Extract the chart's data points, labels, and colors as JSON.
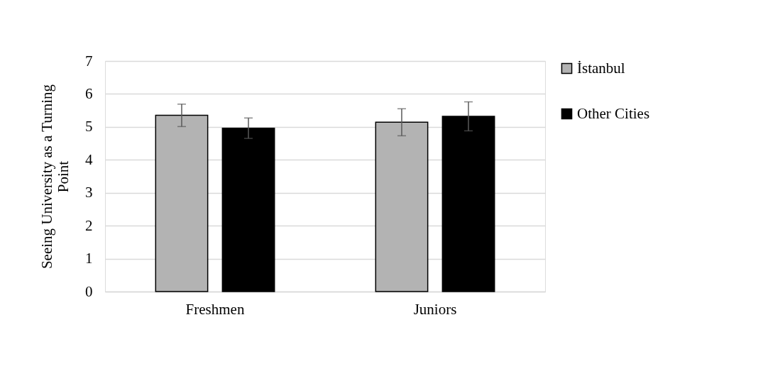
{
  "chart_data": {
    "type": "bar",
    "ylabel": "Seeing University as a Turning Point",
    "categories": [
      "Freshmen",
      "Juniors"
    ],
    "series": [
      {
        "name": "İstanbul",
        "color": "#b3b3b3",
        "values": [
          5.35,
          5.14
        ],
        "errors": [
          0.34,
          0.41
        ]
      },
      {
        "name": "Other Cities",
        "color": "#000000",
        "values": [
          4.96,
          5.32
        ],
        "errors": [
          0.31,
          0.44
        ]
      }
    ],
    "ylim": [
      0,
      7
    ],
    "yticks": [
      0,
      1,
      2,
      3,
      4,
      5,
      6,
      7
    ],
    "grid": "y",
    "legend": "right"
  }
}
